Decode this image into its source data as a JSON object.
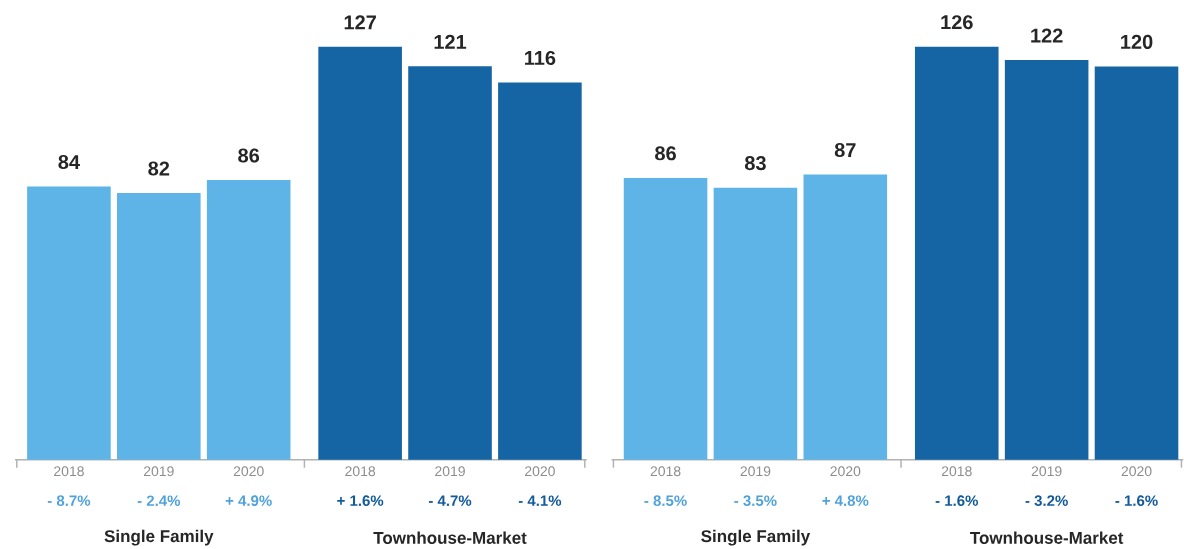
{
  "chart_data": [
    {
      "type": "bar",
      "categories": [
        "2018",
        "2019",
        "2020",
        "2018",
        "2019",
        "2020"
      ],
      "values": [
        84,
        82,
        86,
        127,
        121,
        116
      ],
      "colors": [
        "#5eb4e6",
        "#5eb4e6",
        "#5eb4e6",
        "#1565a5",
        "#1565a5",
        "#1565a5"
      ],
      "data_labels": true,
      "annotations": [
        "- 8.7%",
        "- 2.4%",
        "+ 4.9%",
        "+ 1.6%",
        "- 4.7%",
        "- 4.1%",
        "Single Family",
        "Townhouse-Market"
      ]
    },
    {
      "type": "bar",
      "categories": [
        "2018",
        "2019",
        "2020",
        "2018",
        "2019",
        "2020"
      ],
      "values": [
        86,
        83,
        87,
        126,
        122,
        120
      ],
      "colors": [
        "#5eb4e6",
        "#5eb4e6",
        "#5eb4e6",
        "#1565a5",
        "#1565a5",
        "#1565a5"
      ],
      "data_labels": true,
      "annotations": [
        "- 8.5%",
        "- 3.5%",
        "+ 4.8%",
        "- 1.6%",
        "- 3.2%",
        "- 1.6%",
        "Single Family",
        "Townhouse-Market"
      ]
    }
  ]
}
